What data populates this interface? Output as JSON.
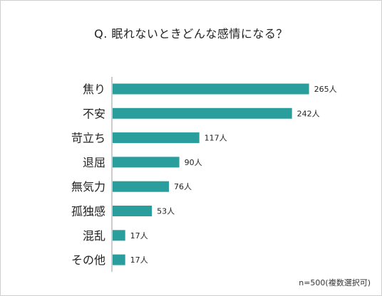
{
  "chart_data": {
    "type": "bar",
    "orientation": "horizontal",
    "title": "Q. 眠れないときどんな感情になる？",
    "categories": [
      "焦り",
      "不安",
      "苛立ち",
      "退屈",
      "無気力",
      "孤独感",
      "混乱",
      "その他"
    ],
    "values": [
      265,
      242,
      117,
      90,
      76,
      53,
      17,
      17
    ],
    "value_labels": [
      "265人",
      "242人",
      "117人",
      "90人",
      "76人",
      "53人",
      "17人",
      "17人"
    ],
    "bar_color": "#2a9d9d",
    "grid": false,
    "legend": "none",
    "footnote": "n=500(複数選択可)"
  }
}
